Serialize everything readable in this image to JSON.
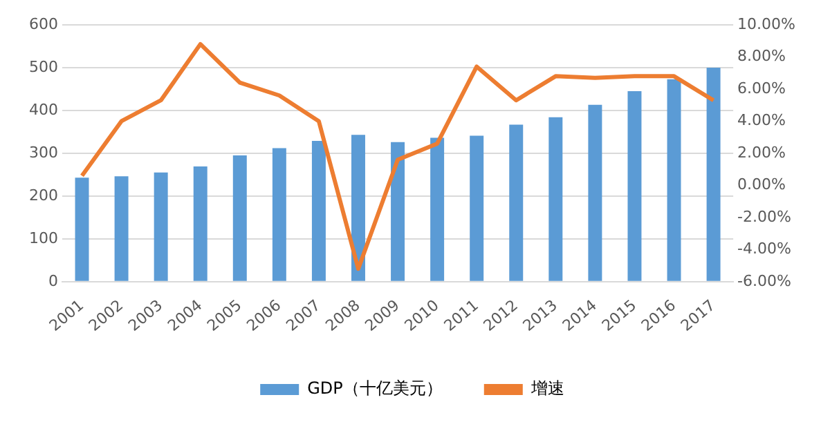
{
  "chart_data": {
    "type": "bar",
    "categories": [
      "2001",
      "2002",
      "2003",
      "2004",
      "2005",
      "2006",
      "2007",
      "2008",
      "2009",
      "2010",
      "2011",
      "2012",
      "2013",
      "2014",
      "2015",
      "2016",
      "2017"
    ],
    "series": [
      {
        "name": "GDP（十亿美元）",
        "color": "#5b9bd5",
        "values": [
          243,
          246,
          255,
          269,
          295,
          312,
          329,
          343,
          326,
          336,
          341,
          367,
          384,
          413,
          445,
          473,
          500
        ]
      },
      {
        "name": "增速",
        "type": "line",
        "axis": "y2",
        "color": "#ed7d31",
        "values": [
          0.6,
          4.0,
          5.3,
          8.8,
          6.4,
          5.6,
          4.0,
          -5.2,
          1.6,
          2.6,
          7.4,
          5.3,
          6.8,
          6.7,
          6.8,
          6.8,
          5.3
        ]
      }
    ],
    "ylim": [
      0,
      600
    ],
    "yticks": [
      0,
      100,
      200,
      300,
      400,
      500,
      600
    ],
    "y2lim": [
      -6,
      10
    ],
    "y2ticks": [
      {
        "value": -6,
        "label": "-6.00%"
      },
      {
        "value": -4,
        "label": "-4.00%"
      },
      {
        "value": -2,
        "label": "-2.00%"
      },
      {
        "value": 0,
        "label": "0.00%"
      },
      {
        "value": 2,
        "label": "2.00%"
      },
      {
        "value": 4,
        "label": "4.00%"
      },
      {
        "value": 6,
        "label": "6.00%"
      },
      {
        "value": 8,
        "label": "8.00%"
      },
      {
        "value": 10,
        "label": "10.00%"
      }
    ],
    "grid": "y",
    "legend": "bottom",
    "marker": "none"
  }
}
